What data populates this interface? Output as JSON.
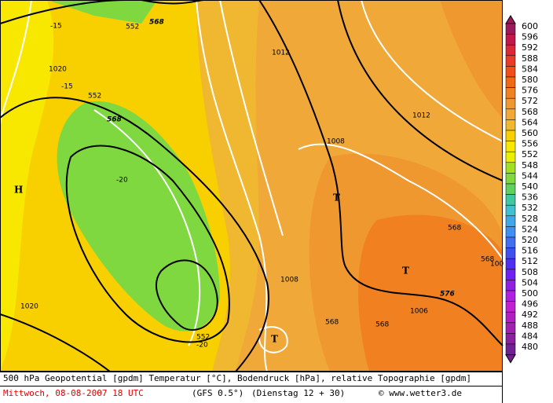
{
  "map": {
    "labels": [
      "568",
      "552",
      "-15",
      "1020",
      "-15",
      "552",
      "568",
      "-20",
      "H",
      "1012",
      "1012",
      "1008",
      "T",
      "568",
      "T",
      "1008",
      "1020",
      "552",
      "-20",
      "T",
      "568",
      "568",
      "1006",
      "576",
      "568",
      "100"
    ]
  },
  "colorbar": {
    "levels": [
      600,
      596,
      592,
      588,
      584,
      580,
      576,
      572,
      568,
      564,
      560,
      556,
      552,
      548,
      544,
      540,
      536,
      532,
      528,
      524,
      520,
      516,
      512,
      508,
      504,
      500,
      496,
      492,
      488,
      484,
      480
    ],
    "colors": [
      "#9b1b5a",
      "#c0184a",
      "#d8283a",
      "#e83c28",
      "#f05018",
      "#f06810",
      "#f08020",
      "#f09830",
      "#f0a838",
      "#f0b830",
      "#f8d000",
      "#f8e800",
      "#e8f000",
      "#a0e020",
      "#80d840",
      "#60d060",
      "#40c8a0",
      "#40c0d0",
      "#40a8e8",
      "#4090f0",
      "#4070f0",
      "#4050f0",
      "#5030f0",
      "#7020f0",
      "#9020e0",
      "#b020e0",
      "#c020d0",
      "#b020c0",
      "#a020b0",
      "#8820a0",
      "#702090"
    ]
  },
  "footer": {
    "line1": "500 hPa Geopotential [gpdm] Temperatur [°C], Bodendruck [hPa], relative Topographie [gpdm]",
    "date": "Mittwoch, 08-08-2007  18 UTC",
    "model": "(GFS 0.5°)",
    "run": "(Dienstag 12 + 30)",
    "credit": "© www.wetter3.de"
  }
}
